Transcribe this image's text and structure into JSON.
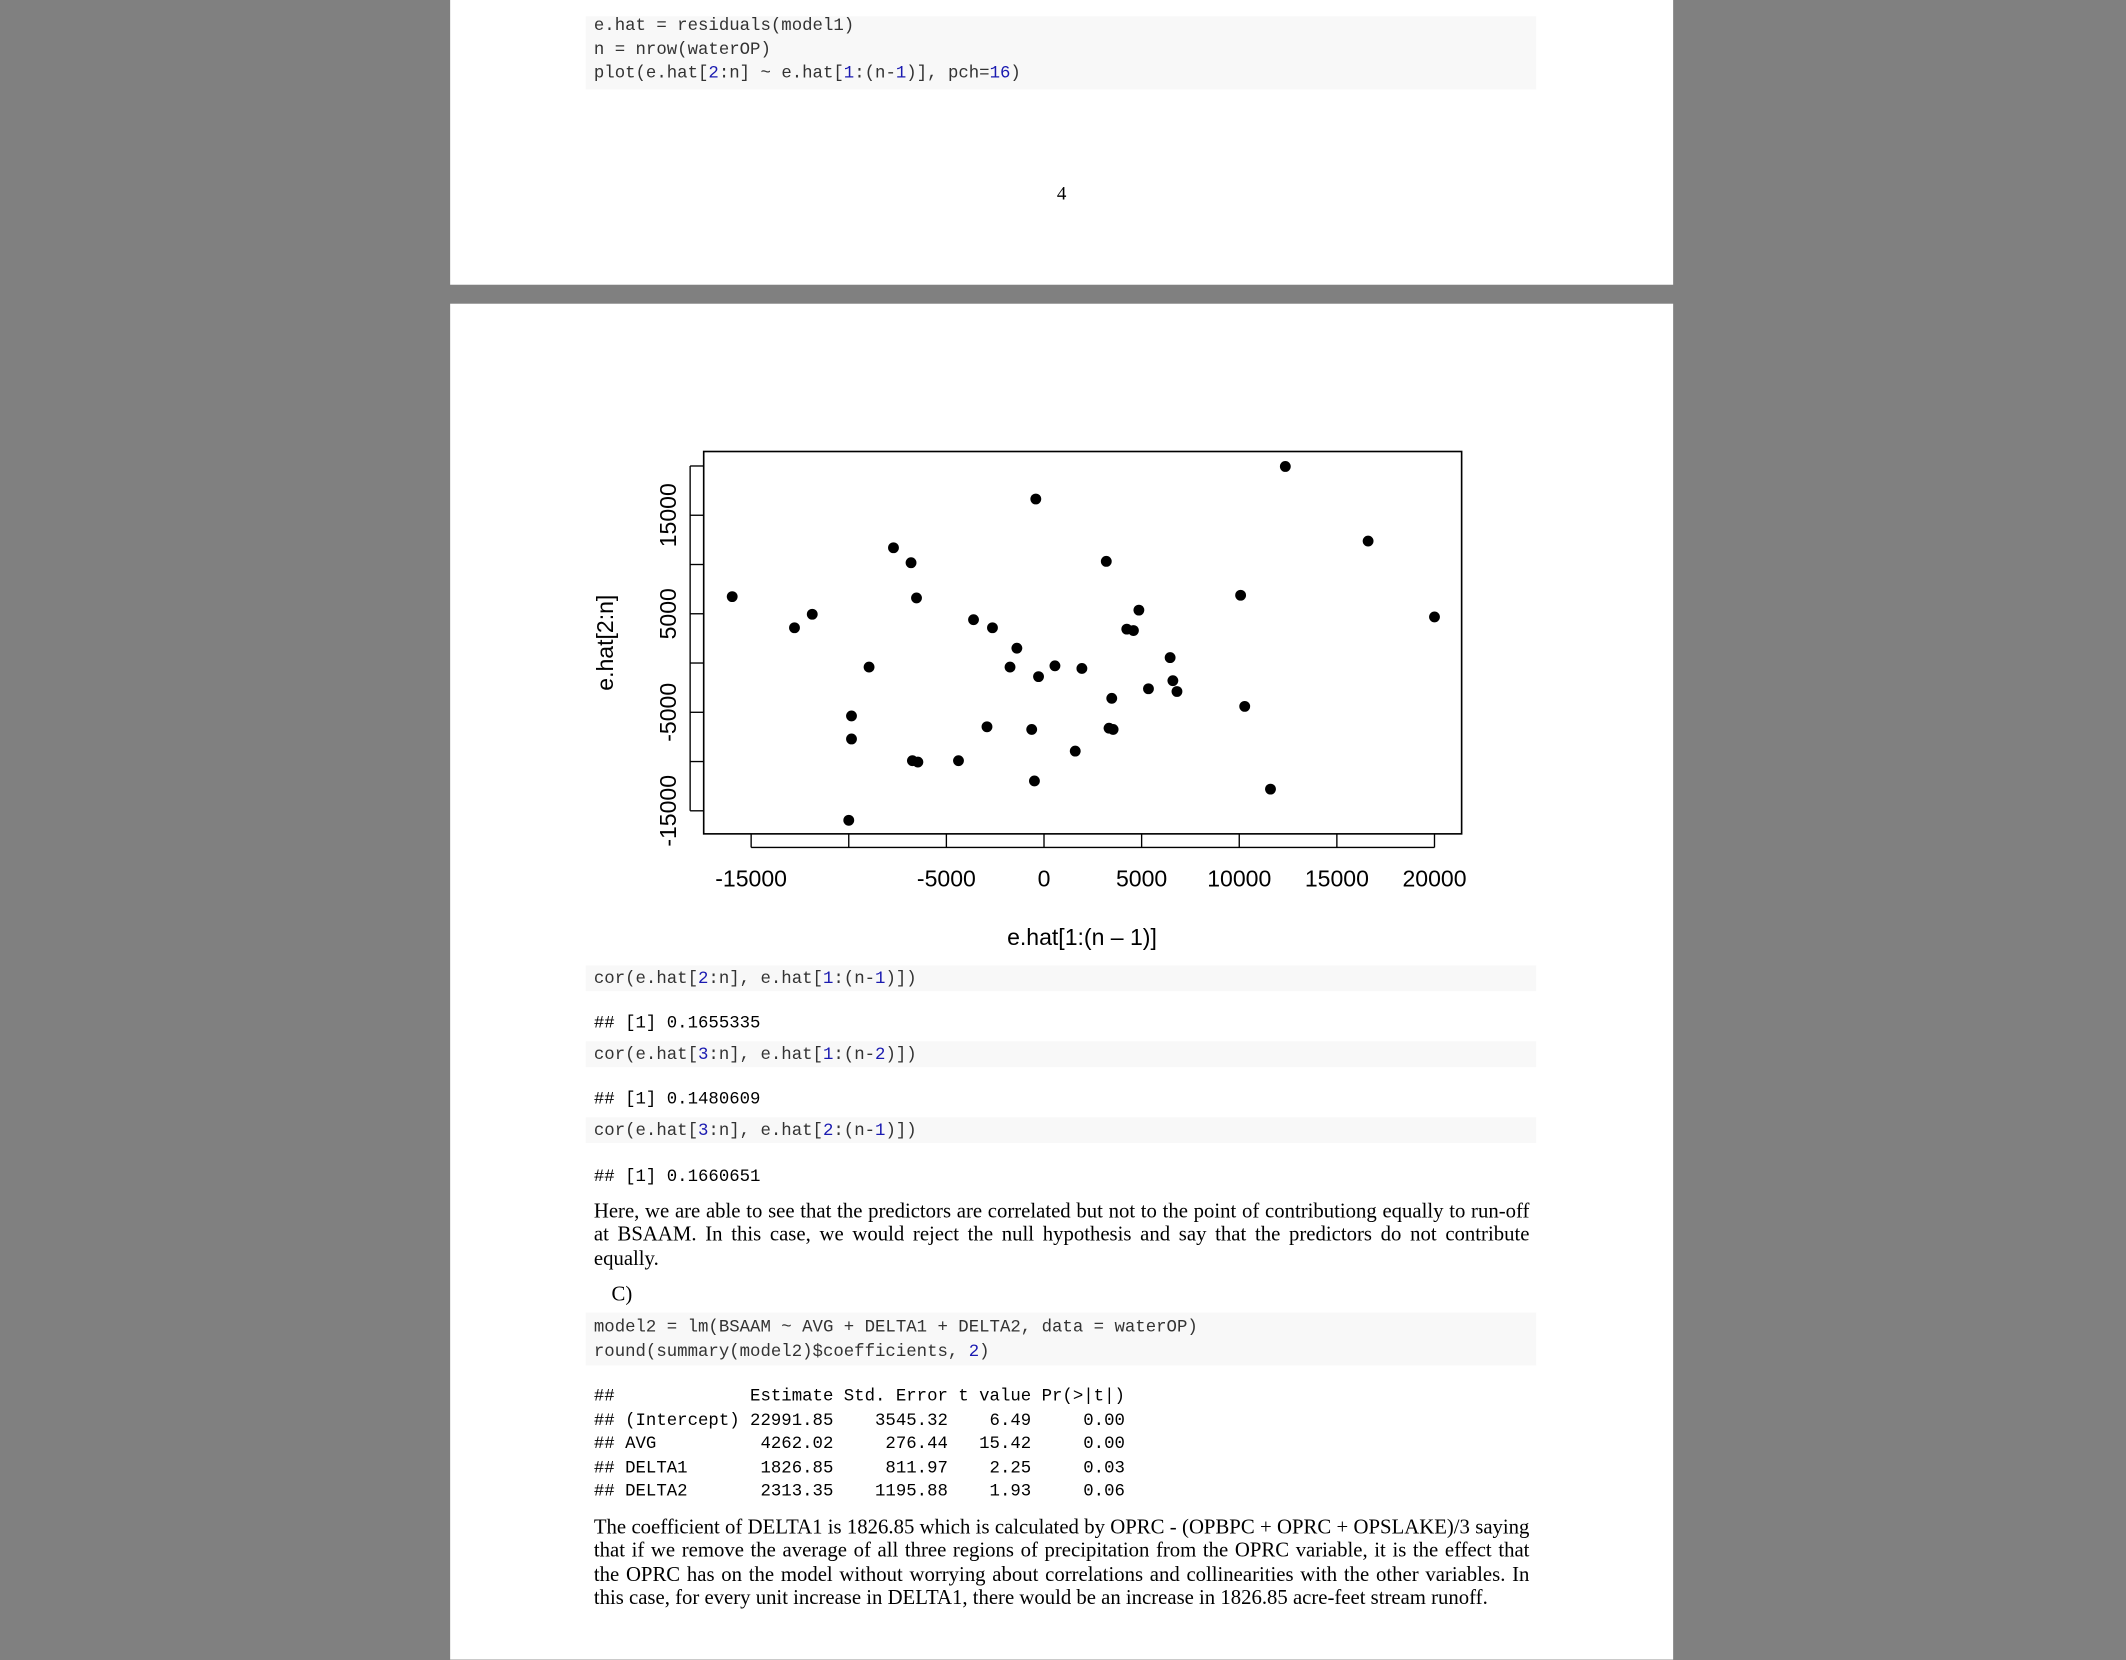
{
  "page1": {
    "code": [
      "e.hat = residuals(model1)",
      "n = nrow(waterOP)",
      "plot(e.hat[2:n] ~ e.hat[1:(n-1)], pch=16)"
    ],
    "page_number": "4"
  },
  "chart_data": {
    "type": "scatter",
    "xlabel": "e.hat[1:(n – 1)]",
    "ylabel": "e.hat[2:n]",
    "color": "#000000",
    "xlim": [
      -17430,
      21390
    ],
    "ylim": [
      -17340,
      21470
    ],
    "xticks": [
      -15000,
      {
        "value": -10000,
        "label": null
      },
      -5000,
      0,
      5000,
      10000,
      15000,
      20000
    ],
    "yticks": [
      -15000,
      {
        "value": -10000,
        "label": null
      },
      -5000,
      {
        "value": 0,
        "label": null
      },
      5000,
      {
        "value": 10000,
        "label": null
      },
      15000,
      {
        "value": 20000,
        "label": null
      }
    ],
    "x": [
      -15970,
      -12780,
      -11870,
      -8960,
      -9860,
      -9860,
      -10000,
      -7710,
      -6810,
      -6530,
      -6740,
      -6460,
      -4380,
      -3610,
      -2920,
      -2640,
      -1390,
      -1740,
      -630,
      -420,
      -490,
      -280,
      560,
      1600,
      1940,
      3190,
      3330,
      3540,
      3470,
      4240,
      4580,
      4860,
      5350,
      6460,
      6600,
      6810,
      10070,
      10280,
      11600,
      12360,
      16600,
      20000
    ],
    "y": [
      6740,
      3580,
      4950,
      -410,
      -5370,
      -7710,
      -15960,
      11700,
      10180,
      6610,
      -9910,
      -10050,
      -9910,
      4400,
      -6470,
      3580,
      1510,
      -410,
      -6740,
      16650,
      -11970,
      -1380,
      -280,
      -8940,
      -550,
      10320,
      -6610,
      -6740,
      -3580,
      3440,
      3300,
      5370,
      -2610,
      550,
      -1790,
      -2890,
      6880,
      -4400,
      -12800,
      19950,
      12380,
      4680
    ]
  },
  "page2": {
    "blocks": [
      {
        "code": [
          "cor(e.hat[2:n], e.hat[1:(n-1)])"
        ]
      },
      {
        "output": [
          "## [1] 0.1655335"
        ]
      },
      {
        "code": [
          "cor(e.hat[3:n], e.hat[1:(n-2)])"
        ]
      },
      {
        "output": [
          "## [1] 0.1480609"
        ]
      },
      {
        "code": [
          "cor(e.hat[3:n], e.hat[2:(n-1)])"
        ]
      },
      {
        "output": [
          "## [1] 0.1660651"
        ]
      }
    ],
    "paragraph1": "Here, we are able to see that the predictors are correlated but not to the point of contributiong equally to run-off at BSAAM. In this case, we would reject the null hypothesis and say that the predictors do not contribute equally.",
    "section": "C)",
    "code2": [
      "model2 = lm(BSAAM ~ AVG + DELTA1 + DELTA2, data = waterOP)",
      "round(summary(model2)$coefficients, 2)"
    ],
    "table": [
      "##             Estimate Std. Error t value Pr(>|t|)",
      "## (Intercept) 22991.85    3545.32    6.49     0.00",
      "## AVG          4262.02     276.44   15.42     0.00",
      "## DELTA1       1826.85     811.97    2.25     0.03",
      "## DELTA2       2313.35    1195.88    1.93     0.06"
    ],
    "paragraph2": "The coefficient of DELTA1 is 1826.85 which is calculated by OPRC - (OPBPC + OPRC + OPSLAKE)/3 saying that if we remove the average of all three regions of precipitation from the OPRC variable, it is the effect that the OPRC has on the model without worrying about correlations and collinearities with the other variables. In this case, for every unit increase in DELTA1, there would be an increase in 1826.85 acre-feet stream runoff."
  }
}
